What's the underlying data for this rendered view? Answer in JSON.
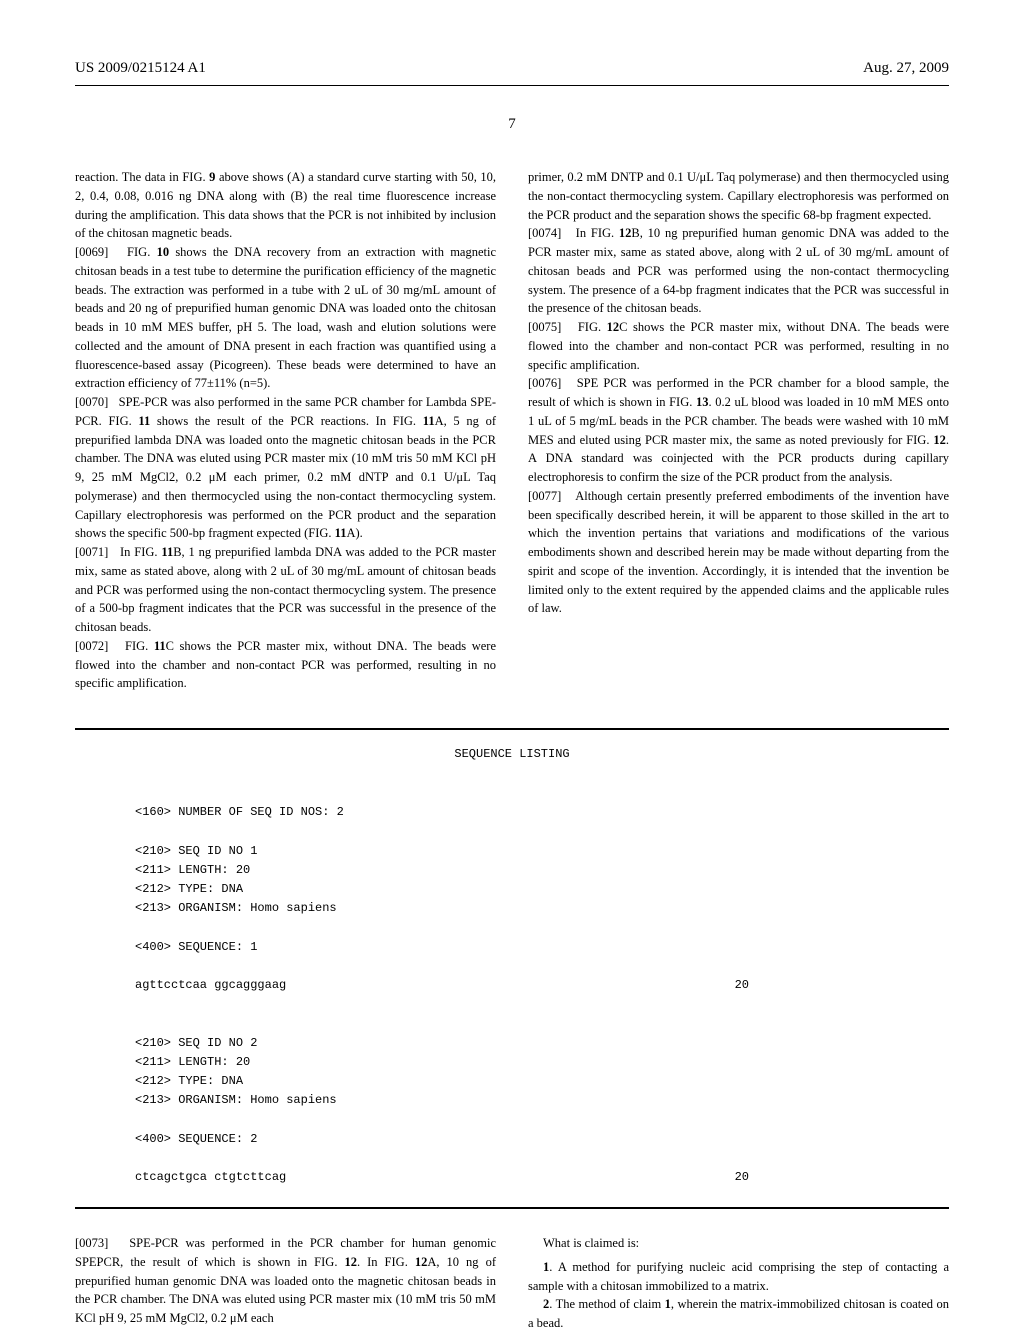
{
  "header": {
    "pub_number": "US 2009/0215124 A1",
    "date": "Aug. 27, 2009"
  },
  "page_number": "7",
  "left_column": [
    "reaction. The data in FIG. <b>9</b> above shows (A) a standard curve starting with 50, 10, 2, 0.4, 0.08, 0.016 ng DNA along with (B) the real time fluorescence increase during the amplification. This data shows that the PCR is not inhibited by inclusion of the chitosan magnetic beads.",
    "[0069]&nbsp;&nbsp;&nbsp;FIG. <b>10</b> shows the DNA recovery from an extraction with magnetic chitosan beads in a test tube to determine the purification efficiency of the magnetic beads. The extraction was performed in a tube with 2 uL of 30 mg/mL amount of beads and 20 ng of prepurified human genomic DNA was loaded onto the chitosan beads in 10 mM MES buffer, pH 5. The load, wash and elution solutions were collected and the amount of DNA present in each fraction was quantified using a fluorescence-based assay (Picogreen). These beads were determined to have an extraction efficiency of 77±11% (n=5).",
    "[0070]&nbsp;&nbsp;&nbsp;SPE-PCR was also performed in the same PCR chamber for Lambda SPE-PCR. FIG. <b>11</b> shows the result of the PCR reactions. In FIG. <b>11</b>A, 5 ng of prepurified lambda DNA was loaded onto the magnetic chitosan beads in the PCR chamber. The DNA was eluted using PCR master mix (10 mM tris 50 mM KCl pH 9, 25 mM MgCl2, 0.2 μM each primer, 0.2 mM dNTP and 0.1 U/μL Taq polymerase) and then thermocycled using the non-contact thermocycling system. Capillary electrophoresis was performed on the PCR product and the separation shows the specific 500-bp fragment expected (FIG. <b>11</b>A).",
    "[0071]&nbsp;&nbsp;&nbsp;In FIG. <b>11</b>B, 1 ng prepurified lambda DNA was added to the PCR master mix, same as stated above, along with 2 uL of 30 mg/mL amount of chitosan beads and PCR was performed using the non-contact thermocycling system. The presence of a 500-bp fragment indicates that the PCR was successful in the presence of the chitosan beads.",
    "[0072]&nbsp;&nbsp;&nbsp;FIG. <b>11</b>C shows the PCR master mix, without DNA. The beads were flowed into the chamber and non-contact PCR was performed, resulting in no specific amplification."
  ],
  "right_column": [
    "primer, 0.2 mM DNTP and 0.1 U/μL Taq polymerase) and then thermocycled using the non-contact thermocycling system. Capillary electrophoresis was performed on the PCR product and the separation shows the specific 68-bp fragment expected.",
    "[0074]&nbsp;&nbsp;&nbsp;In FIG. <b>12</b>B, 10 ng prepurified human genomic DNA was added to the PCR master mix, same as stated above, along with 2 uL of 30 mg/mL amount of chitosan beads and PCR was performed using the non-contact thermocycling system. The presence of a 64-bp fragment indicates that the PCR was successful in the presence of the chitosan beads.",
    "[0075]&nbsp;&nbsp;&nbsp;FIG. <b>12</b>C shows the PCR master mix, without DNA. The beads were flowed into the chamber and non-contact PCR was performed, resulting in no specific amplification.",
    "[0076]&nbsp;&nbsp;&nbsp;SPE PCR was performed in the PCR chamber for a blood sample, the result of which is shown in FIG. <b>13</b>. 0.2 uL blood was loaded in 10 mM MES onto 1 uL of 5 mg/mL beads in the PCR chamber. The beads were washed with 10 mM MES and eluted using PCR master mix, the same as noted previously for FIG. <b>12</b>. A DNA standard was coinjected with the PCR products during capillary electrophoresis to confirm the size of the PCR product from the analysis.",
    "[0077]&nbsp;&nbsp;&nbsp;Although certain presently preferred embodiments of the invention have been specifically described herein, it will be apparent to those skilled in the art to which the invention pertains that variations and modifications of the various embodiments shown and described herein may be made without departing from the spirit and scope of the invention. Accordingly, it is intended that the invention be limited only to the extent required by the appended claims and the applicable rules of law."
  ],
  "sequence": {
    "title": "SEQUENCE LISTING",
    "lines": [
      "",
      "<160> NUMBER OF SEQ ID NOS: 2",
      "",
      "<210> SEQ ID NO 1",
      "<211> LENGTH: 20",
      "<212> TYPE: DNA",
      "<213> ORGANISM: Homo sapiens",
      "",
      "<400> SEQUENCE: 1",
      ""
    ],
    "seq1": "agttcctcaa ggcagggaag",
    "seq1_num": "20",
    "lines2": [
      "",
      "",
      "<210> SEQ ID NO 2",
      "<211> LENGTH: 20",
      "<212> TYPE: DNA",
      "<213> ORGANISM: Homo sapiens",
      "",
      "<400> SEQUENCE: 2",
      ""
    ],
    "seq2": "ctcagctgca ctgtcttcag",
    "seq2_num": "20"
  },
  "bottom_left": "[0073]&nbsp;&nbsp;&nbsp;SPE-PCR was performed in the PCR chamber for human genomic SPEPCR, the result of which is shown in FIG. <b>12</b>. In FIG. <b>12</b>A, 10 ng of prepurified human genomic DNA was loaded onto the magnetic chitosan beads in the PCR chamber. The DNA was eluted using PCR master mix (10 mM tris 50 mM KCl pH 9, 25 mM MgCl2, 0.2 μM each",
  "claims": {
    "header": "What is claimed is:",
    "claim1": "<b>1</b>. A method for purifying nucleic acid comprising the step of contacting a sample with a chitosan immobilized to a matrix.",
    "claim2": "<b>2</b>. The method of claim <b>1</b>, wherein the matrix-immobilized chitosan is coated on a bead."
  }
}
